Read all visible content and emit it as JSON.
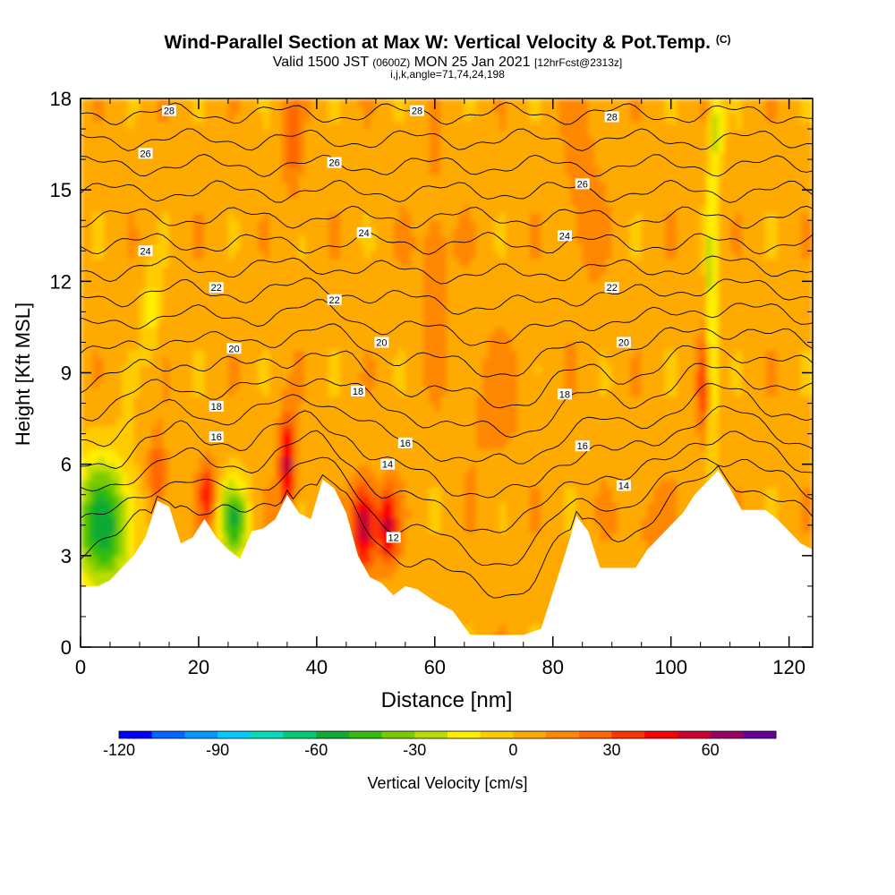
{
  "title": {
    "main": "Wind-Parallel Section at Max W: Vertical Velocity & Pot.Temp.",
    "main_suffix": "(C)",
    "valid_prefix": "Valid 1500 JST",
    "valid_utc": "(0600Z)",
    "valid_date": "MON 25 Jan 2021",
    "forecast": "[12hrFcst@2313z]",
    "indices": "i,j,k,angle=71,74,24,198"
  },
  "chart_data": {
    "type": "heatmap",
    "xlabel": "Distance [nm]",
    "ylabel": "Height [Kft MSL]",
    "xlim": [
      0,
      124
    ],
    "ylim": [
      0,
      18
    ],
    "x_ticks": [
      0,
      20,
      40,
      60,
      80,
      100,
      120
    ],
    "y_ticks": [
      0,
      3,
      6,
      9,
      12,
      15,
      18
    ],
    "colorbar": {
      "label": "Vertical Velocity [cm/s]",
      "min": -120,
      "max": 80,
      "step": 10,
      "tick_values": [
        -120,
        -90,
        -60,
        -30,
        0,
        30,
        60
      ],
      "colors": [
        "#0000ff",
        "#0066ff",
        "#0099ff",
        "#00ccff",
        "#00ddbb",
        "#00cc77",
        "#11aa33",
        "#33bb11",
        "#77cc00",
        "#bbdd00",
        "#ffee00",
        "#ffcc00",
        "#ffaa00",
        "#ff8800",
        "#ff6600",
        "#ff3300",
        "#ff0000",
        "#cc0033",
        "#990066",
        "#660099"
      ]
    },
    "background_velocity": 5,
    "velocity_anomalies": [
      {
        "x": 4,
        "y": 4.0,
        "w": -60,
        "dx": 5,
        "dy": 2.2
      },
      {
        "x": 13,
        "y": 5.6,
        "w": 30,
        "dx": 1.5,
        "dy": 1.2
      },
      {
        "x": 21.5,
        "y": 5.0,
        "w": 40,
        "dx": 1.3,
        "dy": 1.0
      },
      {
        "x": 26,
        "y": 4.2,
        "w": -55,
        "dx": 2.5,
        "dy": 1.2
      },
      {
        "x": 35,
        "y": 6.0,
        "w": 55,
        "dx": 1.3,
        "dy": 1.6
      },
      {
        "x": 48,
        "y": 4.0,
        "w": 60,
        "dx": 2.0,
        "dy": 1.4
      },
      {
        "x": 52,
        "y": 4.0,
        "w": 50,
        "dx": 1.6,
        "dy": 1.2
      },
      {
        "x": 107,
        "y": 11.0,
        "w": -35,
        "dx": 0.8,
        "dy": 6.0
      },
      {
        "x": 105.5,
        "y": 8.5,
        "w": 30,
        "dx": 1.0,
        "dy": 1.5
      },
      {
        "x": 36,
        "y": 16.5,
        "w": 20,
        "dx": 1.5,
        "dy": 2.0
      },
      {
        "x": 12,
        "y": 11.0,
        "w": -20,
        "dx": 1.5,
        "dy": 1.5
      },
      {
        "x": 108,
        "y": 17.0,
        "w": -30,
        "dx": 1.0,
        "dy": 1.2
      },
      {
        "x": 60,
        "y": 13.0,
        "w": 12,
        "dx": 3,
        "dy": 3
      },
      {
        "x": 85,
        "y": 15.0,
        "w": 12,
        "dx": 3,
        "dy": 3
      },
      {
        "x": 70,
        "y": 8.0,
        "w": 10,
        "dx": 5,
        "dy": 2
      },
      {
        "x": 95,
        "y": 4.0,
        "w": 10,
        "dx": 4,
        "dy": 1.5
      }
    ],
    "terrain": {
      "x": [
        0,
        3,
        5,
        7,
        9,
        11,
        13,
        15,
        17,
        19,
        21,
        23,
        25,
        27,
        29,
        31,
        33,
        35,
        37,
        39,
        41,
        43,
        45,
        47,
        49,
        51,
        53,
        55,
        57,
        60,
        63,
        66,
        69,
        72,
        75,
        78,
        80,
        82,
        84,
        86,
        88,
        90,
        92,
        94,
        96,
        98,
        100,
        102,
        104,
        106,
        108,
        110,
        112,
        114,
        116,
        118,
        120,
        122,
        124
      ],
      "height": [
        2.0,
        2.0,
        2.2,
        2.6,
        3.0,
        3.6,
        4.8,
        4.6,
        3.4,
        3.6,
        4.2,
        3.6,
        3.2,
        2.9,
        3.8,
        3.9,
        4.2,
        5.0,
        4.4,
        4.2,
        5.5,
        5.2,
        4.4,
        3.0,
        2.3,
        2.1,
        1.7,
        2.0,
        1.9,
        1.5,
        1.2,
        0.4,
        0.4,
        0.4,
        0.4,
        0.6,
        1.8,
        3.0,
        4.3,
        3.8,
        2.6,
        2.6,
        2.6,
        2.6,
        3.2,
        3.6,
        4.0,
        4.4,
        5.0,
        5.4,
        5.8,
        5.2,
        4.5,
        4.5,
        4.5,
        4.2,
        3.8,
        3.4,
        3.2
      ]
    },
    "isotherms": [
      12,
      13,
      14,
      15,
      16,
      17,
      18,
      19,
      20,
      21,
      22,
      23,
      24,
      25,
      26,
      27,
      28
    ],
    "isotherm_labels": [
      {
        "value": "28",
        "x": 15,
        "y": 17.6
      },
      {
        "value": "28",
        "x": 57,
        "y": 17.6
      },
      {
        "value": "28",
        "x": 90,
        "y": 17.4
      },
      {
        "value": "26",
        "x": 11,
        "y": 16.2
      },
      {
        "value": "26",
        "x": 43,
        "y": 15.9
      },
      {
        "value": "26",
        "x": 85,
        "y": 15.2
      },
      {
        "value": "24",
        "x": 11,
        "y": 13.0
      },
      {
        "value": "24",
        "x": 48,
        "y": 13.6
      },
      {
        "value": "24",
        "x": 82,
        "y": 13.5
      },
      {
        "value": "22",
        "x": 23,
        "y": 11.8
      },
      {
        "value": "22",
        "x": 43,
        "y": 11.4
      },
      {
        "value": "22",
        "x": 90,
        "y": 11.8
      },
      {
        "value": "20",
        "x": 26,
        "y": 9.8
      },
      {
        "value": "20",
        "x": 51,
        "y": 10.0
      },
      {
        "value": "20",
        "x": 92,
        "y": 10.0
      },
      {
        "value": "18",
        "x": 23,
        "y": 7.9
      },
      {
        "value": "18",
        "x": 47,
        "y": 8.4
      },
      {
        "value": "18",
        "x": 82,
        "y": 8.3
      },
      {
        "value": "16",
        "x": 23,
        "y": 6.9
      },
      {
        "value": "16",
        "x": 55,
        "y": 6.7
      },
      {
        "value": "16",
        "x": 85,
        "y": 6.6
      },
      {
        "value": "14",
        "x": 52,
        "y": 6.0
      },
      {
        "value": "14",
        "x": 92,
        "y": 5.3
      },
      {
        "value": "12",
        "x": 53,
        "y": 3.6
      }
    ]
  }
}
